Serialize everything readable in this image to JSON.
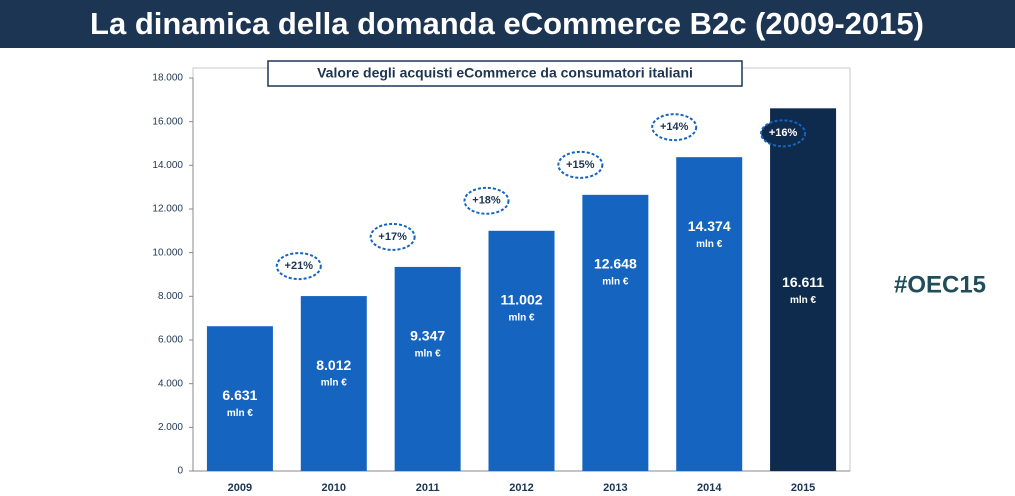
{
  "header": {
    "title": "La dinamica della domanda eCommerce B2c (2009-2015)"
  },
  "side_tag": "#OEC15",
  "chart_data": {
    "type": "bar",
    "title": "Valore degli acquisti eCommerce da consumatori italiani",
    "categories": [
      "2009",
      "2010",
      "2011",
      "2012",
      "2013",
      "2014",
      "2015"
    ],
    "values": [
      6631,
      8012,
      9347,
      11002,
      12648,
      14374,
      16611
    ],
    "value_labels": [
      "6.631",
      "8.012",
      "9.347",
      "11.002",
      "12.648",
      "14.374",
      "16.611"
    ],
    "unit_label": "mln €",
    "growth_labels": [
      null,
      "+21%",
      "+17%",
      "+18%",
      "+15%",
      "+14%",
      "+16%"
    ],
    "colors": [
      "#1565c0",
      "#1565c0",
      "#1565c0",
      "#1565c0",
      "#1565c0",
      "#1565c0",
      "#0e2a4d"
    ],
    "ylim": [
      0,
      18000
    ],
    "yticks": [
      0,
      {
        "value": 2000,
        "label": "2.000"
      },
      {
        "value": 4000,
        "label": "4.000"
      },
      {
        "value": 6000,
        "label": "6.000"
      },
      {
        "value": 8000,
        "label": "8.000"
      },
      {
        "value": 10000,
        "label": "10.000"
      },
      {
        "value": 12000,
        "label": "12.000"
      },
      {
        "value": 14000,
        "label": "14.000"
      },
      {
        "value": 16000,
        "label": "16.000"
      },
      {
        "value": 18000,
        "label": "18.000"
      }
    ],
    "grid": false
  }
}
